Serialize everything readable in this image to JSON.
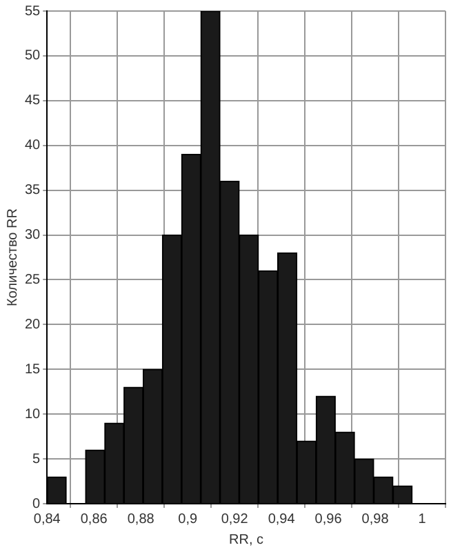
{
  "chart_data": {
    "type": "histogram",
    "xlabel": "RR, c",
    "ylabel": "Количество RR",
    "bins": [
      0.84,
      0.8482,
      0.8564,
      0.8646,
      0.8728,
      0.881,
      0.8892,
      0.8974,
      0.9056,
      0.9138,
      0.922,
      0.9302,
      0.9384,
      0.9466,
      0.9548,
      0.963,
      0.9712,
      0.9794,
      0.9876,
      0.9958
    ],
    "values": [
      3,
      0,
      6,
      9,
      13,
      15,
      30,
      39,
      55,
      36,
      30,
      26,
      28,
      7,
      12,
      8,
      5,
      3,
      2
    ],
    "color": "#1a1a1a",
    "xlim": [
      0.84,
      1.01
    ],
    "xticks": [
      {
        "value": 0.84,
        "label": "0,84"
      },
      {
        "value": 0.86,
        "label": "0,86"
      },
      {
        "value": 0.88,
        "label": "0,88"
      },
      {
        "value": 0.9,
        "label": "0,9"
      },
      {
        "value": 0.92,
        "label": "0,92"
      },
      {
        "value": 0.94,
        "label": "0,94"
      },
      {
        "value": 0.96,
        "label": "0,96"
      },
      {
        "value": 0.98,
        "label": "0,98"
      },
      1
    ],
    "ylim": [
      0,
      55
    ],
    "yticks": [
      0,
      5,
      10,
      15,
      20,
      25,
      30,
      35,
      40,
      45,
      50,
      55
    ],
    "grid": true,
    "legend": false
  }
}
